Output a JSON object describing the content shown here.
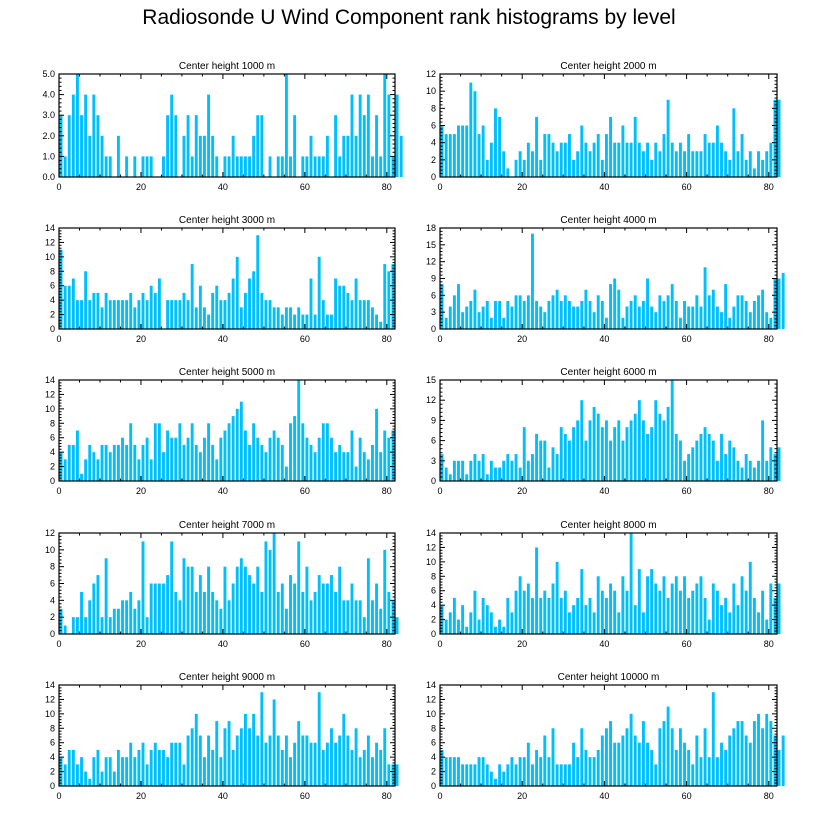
{
  "title": "Radiosonde U Wind Component rank histograms by level",
  "bar_color": "#00bfff",
  "chart_data": [
    {
      "type": "bar",
      "title": "Center height 1000 m",
      "xlim": [
        0,
        82
      ],
      "ylim": [
        0,
        5
      ],
      "yticks": [
        0,
        1,
        2,
        3,
        4,
        5
      ],
      "ytick_labels": [
        "0.0",
        "1.0",
        "2.0",
        "3.0",
        "4.0",
        "5.0"
      ],
      "xticks": [
        0,
        20,
        40,
        60,
        80
      ],
      "xtick_labels": [
        "0",
        "20",
        "40",
        "60",
        "80"
      ],
      "values": [
        3,
        1,
        3,
        4,
        5,
        3,
        4,
        2,
        4,
        3,
        2,
        1,
        1,
        0,
        2,
        0,
        1,
        0,
        1,
        0,
        1,
        1,
        1,
        0,
        0,
        1,
        3,
        4,
        3,
        0,
        2,
        3,
        1,
        3,
        2,
        2,
        4,
        2,
        1,
        0,
        1,
        1,
        2,
        1,
        1,
        1,
        1,
        2,
        3,
        3,
        0,
        1,
        0,
        1,
        1,
        5,
        1,
        3,
        0,
        1,
        1,
        2,
        1,
        1,
        1,
        2,
        0,
        3,
        1,
        2,
        2,
        4,
        2,
        4,
        3,
        4,
        1,
        3,
        1,
        5,
        4,
        1,
        4,
        2
      ]
    },
    {
      "type": "bar",
      "title": "Center height 2000 m",
      "xlim": [
        0,
        82
      ],
      "ylim": [
        0,
        12
      ],
      "yticks": [
        0,
        2,
        4,
        6,
        8,
        10,
        12
      ],
      "ytick_labels": [
        "0",
        "2",
        "4",
        "6",
        "8",
        "10",
        "12"
      ],
      "xticks": [
        0,
        20,
        40,
        60,
        80
      ],
      "xtick_labels": [
        "0",
        "20",
        "40",
        "60",
        "80"
      ],
      "values": [
        6,
        5,
        5,
        5,
        6,
        6,
        6,
        11,
        10,
        5,
        6,
        2,
        4,
        8,
        7,
        3,
        1,
        0,
        2,
        3,
        2,
        4,
        3,
        7,
        2,
        5,
        5,
        4,
        3,
        4,
        4,
        5,
        2,
        3,
        6,
        4,
        3,
        4,
        5,
        2,
        5,
        7,
        4,
        4,
        6,
        4,
        4,
        7,
        4,
        3,
        4,
        2,
        4,
        3,
        5,
        9,
        4,
        3,
        4,
        3,
        5,
        3,
        3,
        3,
        5,
        4,
        4,
        6,
        4,
        3,
        2,
        8,
        3,
        5,
        2,
        3,
        1,
        3,
        2,
        3,
        4,
        9,
        9
      ]
    },
    {
      "type": "bar",
      "title": "Center height 3000 m",
      "xlim": [
        0,
        82
      ],
      "ylim": [
        0,
        14
      ],
      "yticks": [
        0,
        2,
        4,
        6,
        8,
        10,
        12,
        14
      ],
      "ytick_labels": [
        "0",
        "2",
        "4",
        "6",
        "8",
        "10",
        "12",
        "14"
      ],
      "xticks": [
        0,
        20,
        40,
        60,
        80
      ],
      "xtick_labels": [
        "0",
        "20",
        "40",
        "60",
        "80"
      ],
      "values": [
        11,
        6,
        6,
        7,
        4,
        4,
        8,
        4,
        5,
        5,
        3,
        5,
        4,
        4,
        4,
        4,
        4,
        5,
        3,
        4,
        5,
        4,
        6,
        5,
        7,
        0,
        4,
        4,
        4,
        4,
        5,
        4,
        9,
        3,
        6,
        3,
        2,
        5,
        6,
        4,
        4,
        5,
        7,
        10,
        3,
        5,
        7,
        8,
        13,
        5,
        4,
        4,
        3,
        3,
        2,
        3,
        3,
        2,
        3,
        2,
        2,
        7,
        2,
        10,
        4,
        2,
        2,
        7,
        6,
        6,
        5,
        4,
        7,
        4,
        4,
        4,
        3,
        2,
        1,
        9,
        8,
        9
      ]
    },
    {
      "type": "bar",
      "title": "Center height 4000 m",
      "xlim": [
        0,
        82
      ],
      "ylim": [
        0,
        18
      ],
      "yticks": [
        0,
        3,
        6,
        9,
        12,
        15,
        18
      ],
      "ytick_labels": [
        "0",
        "3",
        "6",
        "9",
        "12",
        "15",
        "18"
      ],
      "xticks": [
        0,
        20,
        40,
        60,
        80
      ],
      "xtick_labels": [
        "0",
        "20",
        "40",
        "60",
        "80"
      ],
      "values": [
        8,
        2,
        4,
        6,
        8,
        3,
        4,
        5,
        7,
        3,
        4,
        5,
        2,
        5,
        5,
        2,
        5,
        4,
        6,
        6,
        5,
        6,
        17,
        5,
        4,
        3,
        5,
        6,
        7,
        5,
        6,
        5,
        4,
        4,
        5,
        7,
        5,
        3,
        6,
        5,
        2,
        8,
        9,
        7,
        2,
        4,
        5,
        6,
        4,
        5,
        9,
        4,
        3,
        6,
        5,
        6,
        8,
        5,
        2,
        5,
        4,
        4,
        6,
        4,
        11,
        6,
        7,
        4,
        3,
        8,
        2,
        4,
        6,
        6,
        5,
        3,
        5,
        6,
        7,
        3,
        2,
        9,
        9,
        10
      ]
    },
    {
      "type": "bar",
      "title": "Center height 5000 m",
      "xlim": [
        0,
        82
      ],
      "ylim": [
        0,
        14
      ],
      "yticks": [
        0,
        2,
        4,
        6,
        8,
        10,
        12,
        14
      ],
      "ytick_labels": [
        "0",
        "2",
        "4",
        "6",
        "8",
        "10",
        "12",
        "14"
      ],
      "xticks": [
        0,
        20,
        40,
        60,
        80
      ],
      "xtick_labels": [
        "0",
        "20",
        "40",
        "60",
        "80"
      ],
      "values": [
        4,
        3,
        5,
        5,
        7,
        1,
        3,
        5,
        4,
        3,
        5,
        5,
        4,
        5,
        5,
        6,
        5,
        8,
        5,
        3,
        5,
        6,
        3,
        8,
        8,
        4,
        7,
        6,
        6,
        8,
        5,
        6,
        8,
        5,
        4,
        6,
        8,
        5,
        3,
        6,
        7,
        8,
        9,
        10,
        11,
        7,
        5,
        8,
        6,
        5,
        4,
        6,
        7,
        6,
        5,
        2,
        8,
        9,
        14,
        8,
        6,
        5,
        4,
        6,
        8,
        8,
        6,
        4,
        5,
        4,
        4,
        7,
        2,
        6,
        4,
        3,
        5,
        10,
        4,
        7,
        6,
        7
      ]
    },
    {
      "type": "bar",
      "title": "Center height 6000 m",
      "xlim": [
        0,
        82
      ],
      "ylim": [
        0,
        15
      ],
      "yticks": [
        0,
        3,
        6,
        9,
        12,
        15
      ],
      "ytick_labels": [
        "0",
        "3",
        "6",
        "9",
        "12",
        "15"
      ],
      "xticks": [
        0,
        20,
        40,
        60,
        80
      ],
      "xtick_labels": [
        "0",
        "20",
        "40",
        "60",
        "80"
      ],
      "values": [
        4,
        2,
        1,
        3,
        3,
        3,
        1,
        3,
        4,
        3,
        4,
        1,
        3,
        2,
        2,
        3,
        4,
        3,
        4,
        2,
        8,
        3,
        4,
        7,
        6,
        6,
        2,
        5,
        4,
        8,
        7,
        6,
        8,
        9,
        12,
        6,
        9,
        11,
        10,
        8,
        9,
        6,
        8,
        9,
        6,
        8,
        9,
        10,
        12,
        9,
        7,
        8,
        12,
        10,
        9,
        11,
        15,
        7,
        6,
        3,
        4,
        5,
        6,
        7,
        8,
        7,
        6,
        3,
        7,
        4,
        6,
        5,
        3,
        2,
        4,
        3,
        2,
        3,
        9,
        3,
        5,
        4,
        5
      ]
    },
    {
      "type": "bar",
      "title": "Center height 7000 m",
      "xlim": [
        0,
        82
      ],
      "ylim": [
        0,
        12
      ],
      "yticks": [
        0,
        2,
        4,
        6,
        8,
        10,
        12
      ],
      "ytick_labels": [
        "0",
        "2",
        "4",
        "6",
        "8",
        "10",
        "12"
      ],
      "xticks": [
        0,
        20,
        40,
        60,
        80
      ],
      "xtick_labels": [
        "0",
        "20",
        "40",
        "60",
        "80"
      ],
      "values": [
        3,
        1,
        0,
        2,
        2,
        5,
        2,
        4,
        6,
        7,
        2,
        9,
        2,
        3,
        3,
        4,
        4,
        5,
        3,
        4,
        11,
        2,
        6,
        6,
        6,
        6,
        7,
        11,
        5,
        4,
        9,
        8,
        8,
        5,
        7,
        5,
        8,
        5,
        4,
        3,
        8,
        4,
        6,
        8,
        9,
        8,
        7,
        6,
        8,
        5,
        11,
        10,
        12,
        5,
        6,
        3,
        7,
        6,
        11,
        5,
        8,
        4,
        5,
        7,
        6,
        6,
        7,
        5,
        8,
        4,
        4,
        6,
        4,
        4,
        2,
        9,
        4,
        6,
        3,
        10,
        5,
        4,
        2
      ]
    },
    {
      "type": "bar",
      "title": "Center height 8000 m",
      "xlim": [
        0,
        82
      ],
      "ylim": [
        0,
        14
      ],
      "yticks": [
        0,
        2,
        4,
        6,
        8,
        10,
        12,
        14
      ],
      "ytick_labels": [
        "0",
        "2",
        "4",
        "6",
        "8",
        "10",
        "12",
        "14"
      ],
      "xticks": [
        0,
        20,
        40,
        60,
        80
      ],
      "xtick_labels": [
        "0",
        "20",
        "40",
        "60",
        "80"
      ],
      "values": [
        4,
        2,
        3,
        5,
        2,
        4,
        1,
        3,
        6,
        2,
        5,
        4,
        3,
        1,
        2,
        1,
        5,
        3,
        6,
        8,
        6,
        7,
        5,
        12,
        5,
        6,
        5,
        7,
        10,
        5,
        6,
        3,
        4,
        5,
        9,
        4,
        5,
        3,
        8,
        6,
        5,
        7,
        6,
        3,
        8,
        6,
        14,
        4,
        9,
        3,
        8,
        9,
        7,
        6,
        8,
        5,
        7,
        8,
        6,
        8,
        5,
        6,
        7,
        8,
        5,
        2,
        7,
        6,
        4,
        5,
        3,
        7,
        4,
        8,
        6,
        10,
        5,
        3,
        6,
        2,
        7,
        5,
        7
      ]
    },
    {
      "type": "bar",
      "title": "Center height 9000 m",
      "xlim": [
        0,
        82
      ],
      "ylim": [
        0,
        14
      ],
      "yticks": [
        0,
        2,
        4,
        6,
        8,
        10,
        12,
        14
      ],
      "ytick_labels": [
        "0",
        "2",
        "4",
        "6",
        "8",
        "10",
        "12",
        "14"
      ],
      "xticks": [
        0,
        20,
        40,
        60,
        80
      ],
      "xtick_labels": [
        "0",
        "20",
        "40",
        "60",
        "80"
      ],
      "values": [
        4,
        3,
        5,
        5,
        3,
        4,
        2,
        1,
        4,
        5,
        2,
        4,
        4,
        2,
        5,
        4,
        4,
        6,
        4,
        5,
        6,
        3,
        5,
        6,
        5,
        5,
        4,
        6,
        6,
        6,
        3,
        7,
        8,
        10,
        7,
        4,
        7,
        5,
        9,
        4,
        8,
        9,
        5,
        7,
        8,
        10,
        8,
        10,
        7,
        13,
        6,
        7,
        12,
        7,
        5,
        7,
        4,
        6,
        9,
        7,
        7,
        6,
        6,
        13,
        5,
        6,
        8,
        6,
        7,
        10,
        7,
        5,
        8,
        4,
        5,
        7,
        4,
        6,
        5,
        8,
        3,
        3,
        3
      ]
    },
    {
      "type": "bar",
      "title": "Center height 10000 m",
      "xlim": [
        0,
        82
      ],
      "ylim": [
        0,
        14
      ],
      "yticks": [
        0,
        2,
        4,
        6,
        8,
        10,
        12,
        14
      ],
      "ytick_labels": [
        "0",
        "2",
        "4",
        "6",
        "8",
        "10",
        "12",
        "14"
      ],
      "xticks": [
        0,
        20,
        40,
        60,
        80
      ],
      "xtick_labels": [
        "0",
        "20",
        "40",
        "60",
        "80"
      ],
      "values": [
        5,
        4,
        4,
        4,
        4,
        3,
        3,
        3,
        3,
        4,
        4,
        3,
        2,
        1,
        3,
        2,
        3,
        4,
        3,
        4,
        4,
        6,
        3,
        5,
        4,
        7,
        4,
        8,
        3,
        3,
        3,
        3,
        6,
        4,
        8,
        5,
        4,
        4,
        5,
        7,
        8,
        9,
        6,
        6,
        7,
        8,
        10,
        7,
        6,
        9,
        6,
        5,
        3,
        8,
        9,
        11,
        8,
        5,
        8,
        6,
        5,
        3,
        7,
        4,
        8,
        4,
        13,
        4,
        6,
        5,
        7,
        8,
        9,
        9,
        7,
        6,
        9,
        10,
        8,
        10,
        9,
        7,
        5,
        7
      ]
    }
  ]
}
